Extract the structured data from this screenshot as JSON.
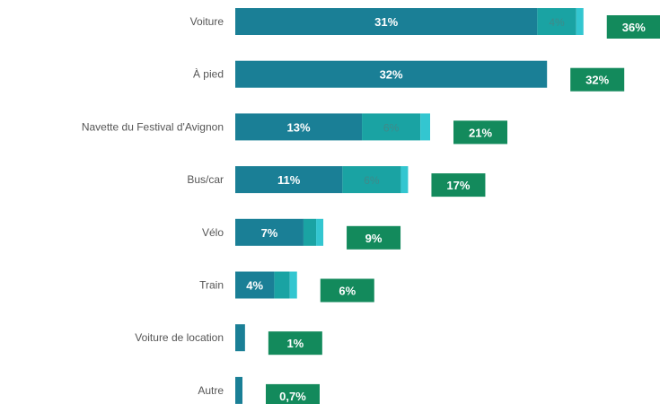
{
  "chart_data": {
    "type": "bar",
    "orientation": "horizontal",
    "stacked": true,
    "categories": [
      "Voiture",
      "À pied",
      "Navette du Festival d'Avignon",
      "Bus/car",
      "Vélo",
      "Train",
      "Voiture de location",
      "Autre"
    ],
    "series": [
      {
        "values": [
          31,
          32,
          13,
          11,
          7,
          4,
          1,
          0.7
        ],
        "labels": [
          "31%",
          "32%",
          "13%",
          "11%",
          "7%",
          "4%",
          "",
          ""
        ]
      },
      {
        "values": [
          4,
          0,
          6,
          6,
          1.3,
          1.6,
          0,
          0
        ],
        "labels": [
          "4%",
          "",
          "6%",
          "6%",
          "",
          "",
          "",
          ""
        ]
      },
      {
        "values": [
          0.5,
          0,
          1,
          0.7,
          0.6,
          0.6,
          0,
          0
        ],
        "labels": [
          "",
          "",
          "",
          "",
          "",
          "",
          "",
          ""
        ]
      }
    ],
    "totals": {
      "values": [
        36,
        32,
        21,
        17,
        9,
        6,
        1,
        0.7
      ],
      "labels": [
        "36%",
        "32%",
        "21%",
        "17%",
        "9%",
        "6%",
        "1%",
        "0,7%"
      ]
    },
    "xlim": [
      0,
      36.5
    ],
    "grid": false,
    "colors": {
      "series": [
        "#1a7f96",
        "#1aa3a3",
        "#33c6d0"
      ],
      "total_badge": "#138a5c",
      "label_text": "#555555"
    }
  }
}
